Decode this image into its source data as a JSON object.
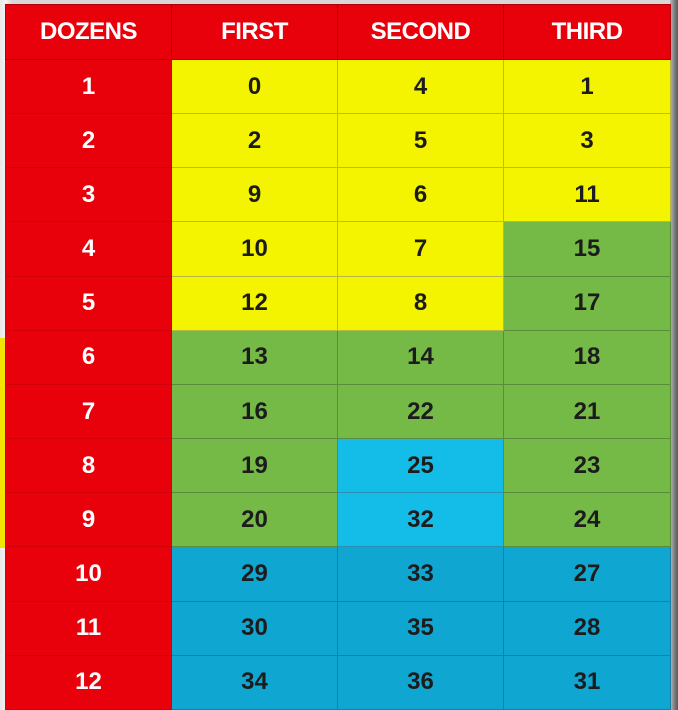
{
  "colors": {
    "red": "#e8000a",
    "yellow": "#f4f400",
    "green": "#75b947",
    "cyan": "#14bde8",
    "blue": "#10a6d2"
  },
  "table": {
    "headers": [
      "DOZENS",
      "FIRST",
      "SECOND",
      "THIRD"
    ],
    "rows": [
      {
        "dozen": "1",
        "cells": [
          {
            "v": "0",
            "c": "yellow"
          },
          {
            "v": "4",
            "c": "yellow"
          },
          {
            "v": "1",
            "c": "yellow"
          }
        ]
      },
      {
        "dozen": "2",
        "cells": [
          {
            "v": "2",
            "c": "yellow"
          },
          {
            "v": "5",
            "c": "yellow"
          },
          {
            "v": "3",
            "c": "yellow"
          }
        ]
      },
      {
        "dozen": "3",
        "cells": [
          {
            "v": "9",
            "c": "yellow"
          },
          {
            "v": "6",
            "c": "yellow"
          },
          {
            "v": "11",
            "c": "yellow"
          }
        ]
      },
      {
        "dozen": "4",
        "cells": [
          {
            "v": "10",
            "c": "yellow"
          },
          {
            "v": "7",
            "c": "yellow"
          },
          {
            "v": "15",
            "c": "green"
          }
        ]
      },
      {
        "dozen": "5",
        "cells": [
          {
            "v": "12",
            "c": "yellow"
          },
          {
            "v": "8",
            "c": "yellow"
          },
          {
            "v": "17",
            "c": "green"
          }
        ]
      },
      {
        "dozen": "6",
        "cells": [
          {
            "v": "13",
            "c": "green"
          },
          {
            "v": "14",
            "c": "green"
          },
          {
            "v": "18",
            "c": "green"
          }
        ]
      },
      {
        "dozen": "7",
        "cells": [
          {
            "v": "16",
            "c": "green"
          },
          {
            "v": "22",
            "c": "green"
          },
          {
            "v": "21",
            "c": "green"
          }
        ]
      },
      {
        "dozen": "8",
        "cells": [
          {
            "v": "19",
            "c": "green"
          },
          {
            "v": "25",
            "c": "cyan"
          },
          {
            "v": "23",
            "c": "green"
          }
        ]
      },
      {
        "dozen": "9",
        "cells": [
          {
            "v": "20",
            "c": "green"
          },
          {
            "v": "32",
            "c": "cyan"
          },
          {
            "v": "24",
            "c": "green"
          }
        ]
      },
      {
        "dozen": "10",
        "cells": [
          {
            "v": "29",
            "c": "blue"
          },
          {
            "v": "33",
            "c": "blue"
          },
          {
            "v": "27",
            "c": "blue"
          }
        ]
      },
      {
        "dozen": "11",
        "cells": [
          {
            "v": "30",
            "c": "blue"
          },
          {
            "v": "35",
            "c": "blue"
          },
          {
            "v": "28",
            "c": "blue"
          }
        ]
      },
      {
        "dozen": "12",
        "cells": [
          {
            "v": "34",
            "c": "blue"
          },
          {
            "v": "36",
            "c": "blue"
          },
          {
            "v": "31",
            "c": "blue"
          }
        ]
      }
    ]
  }
}
